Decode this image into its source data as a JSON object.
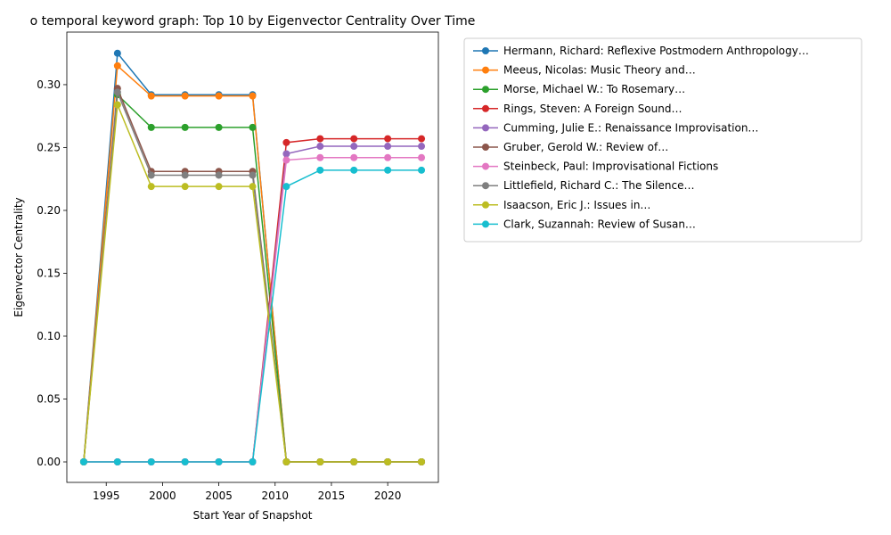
{
  "chart_data": {
    "type": "line",
    "title": "o temporal keyword graph: Top 10 by Eigenvector Centrality Over Time",
    "xlabel": "Start Year of Snapshot",
    "ylabel": "Eigenvector Centrality",
    "xlim": [
      1991.5,
      2024.5
    ],
    "ylim": [
      -0.0163,
      0.3418
    ],
    "xticks": [
      1995,
      2000,
      2005,
      2010,
      2015,
      2020
    ],
    "xtick_labels": [
      "1995",
      "2000",
      "2005",
      "2010",
      "2015",
      "2020"
    ],
    "yticks": [
      0.0,
      0.05,
      0.1,
      0.15,
      0.2,
      0.25,
      0.3
    ],
    "ytick_labels": [
      "0.00",
      "0.05",
      "0.10",
      "0.15",
      "0.20",
      "0.25",
      "0.30"
    ],
    "legend_position": "outside-right-top",
    "grid": false,
    "x": [
      1993,
      1996,
      1999,
      2002,
      2005,
      2008,
      2011,
      2014,
      2017,
      2020,
      2023
    ],
    "series": [
      {
        "name": "Hermann, Richard: Reflexive Postmodern Anthropology…",
        "color": "#1f77b4",
        "values": [
          0.0,
          0.325,
          0.292,
          0.292,
          0.292,
          0.292,
          0.0,
          0.0,
          0.0,
          0.0,
          0.0
        ]
      },
      {
        "name": "Meeus, Nicolas: Music Theory and…",
        "color": "#ff7f0e",
        "values": [
          0.0,
          0.315,
          0.291,
          0.291,
          0.291,
          0.291,
          0.0,
          0.0,
          0.0,
          0.0,
          0.0
        ]
      },
      {
        "name": "Morse, Michael W.: To Rosemary…",
        "color": "#2ca02c",
        "values": [
          0.0,
          0.292,
          0.266,
          0.266,
          0.266,
          0.266,
          0.0,
          0.0,
          0.0,
          0.0,
          0.0
        ]
      },
      {
        "name": "Rings, Steven: A Foreign Sound…",
        "color": "#d62728",
        "values": [
          0.0,
          0.0,
          0.0,
          0.0,
          0.0,
          0.0,
          0.254,
          0.257,
          0.257,
          0.257,
          0.257
        ]
      },
      {
        "name": "Cumming, Julie E.: Renaissance Improvisation…",
        "color": "#9467bd",
        "values": [
          0.0,
          0.0,
          0.0,
          0.0,
          0.0,
          0.0,
          0.245,
          0.251,
          0.251,
          0.251,
          0.251
        ]
      },
      {
        "name": "Gruber, Gerold W.: Review of…",
        "color": "#8c564b",
        "values": [
          0.0,
          0.297,
          0.231,
          0.231,
          0.231,
          0.231,
          0.0,
          0.0,
          0.0,
          0.0,
          0.0
        ]
      },
      {
        "name": "Steinbeck, Paul: Improvisational Fictions",
        "color": "#e377c2",
        "values": [
          0.0,
          0.0,
          0.0,
          0.0,
          0.0,
          0.0,
          0.24,
          0.242,
          0.242,
          0.242,
          0.242
        ]
      },
      {
        "name": "Littlefield, Richard C.: The Silence…",
        "color": "#7f7f7f",
        "values": [
          0.0,
          0.294,
          0.228,
          0.228,
          0.228,
          0.228,
          0.0,
          0.0,
          0.0,
          0.0,
          0.0
        ]
      },
      {
        "name": "Isaacson, Eric J.: Issues in…",
        "color": "#bcbd22",
        "values": [
          0.0,
          0.284,
          0.219,
          0.219,
          0.219,
          0.219,
          0.0,
          0.0,
          0.0,
          0.0,
          0.0
        ]
      },
      {
        "name": "Clark, Suzannah: Review of Susan…",
        "color": "#17becf",
        "values": [
          0.0,
          0.0,
          0.0,
          0.0,
          0.0,
          0.0,
          0.219,
          0.232,
          0.232,
          0.232,
          0.232
        ]
      }
    ]
  }
}
